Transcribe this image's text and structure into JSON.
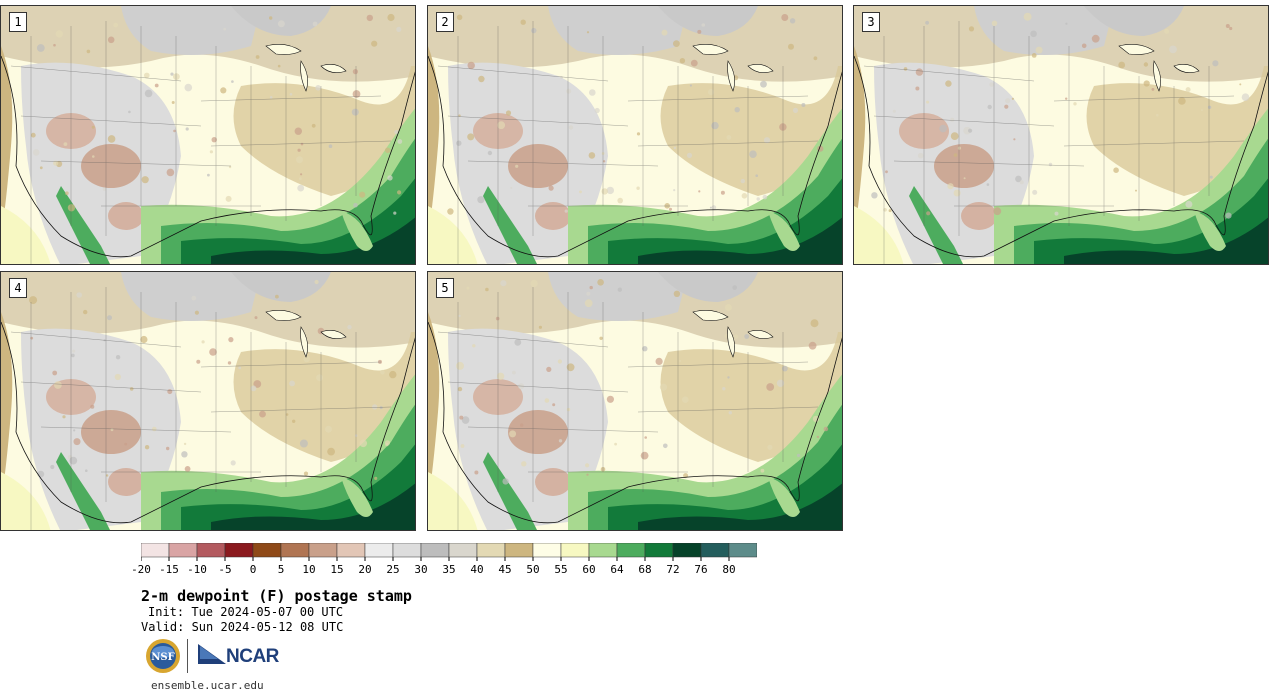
{
  "panels": [
    {
      "number": "1"
    },
    {
      "number": "2"
    },
    {
      "number": "3"
    },
    {
      "number": "4"
    },
    {
      "number": "5"
    }
  ],
  "colorbar": {
    "ticks": [
      "-20",
      "-15",
      "-10",
      "-5",
      "0",
      "5",
      "10",
      "15",
      "20",
      "25",
      "30",
      "35",
      "40",
      "45",
      "50",
      "55",
      "60",
      "64",
      "68",
      "72",
      "76",
      "80"
    ],
    "colors": [
      "#f3e4e4",
      "#d9a4a4",
      "#b35a5f",
      "#8b1a1f",
      "#8f4a18",
      "#b07553",
      "#c9a08a",
      "#e2c6b6",
      "#ececec",
      "#dddddd",
      "#bdbdbd",
      "#d9d6cd",
      "#e3d9b4",
      "#cdb680",
      "#fefde6",
      "#f7f8c2",
      "#a8d990",
      "#4dac5e",
      "#127a3a",
      "#06432a",
      "#245e5d",
      "#5d8c8a"
    ]
  },
  "title": "2-m dewpoint (F) postage stamp",
  "init": "Init: Tue 2024-05-07 00 UTC",
  "valid": "Valid: Sun 2024-05-12 08 UTC",
  "logos": {
    "nsf": "NSF",
    "ncar": "NCAR"
  },
  "url": "ensemble.ucar.edu"
}
